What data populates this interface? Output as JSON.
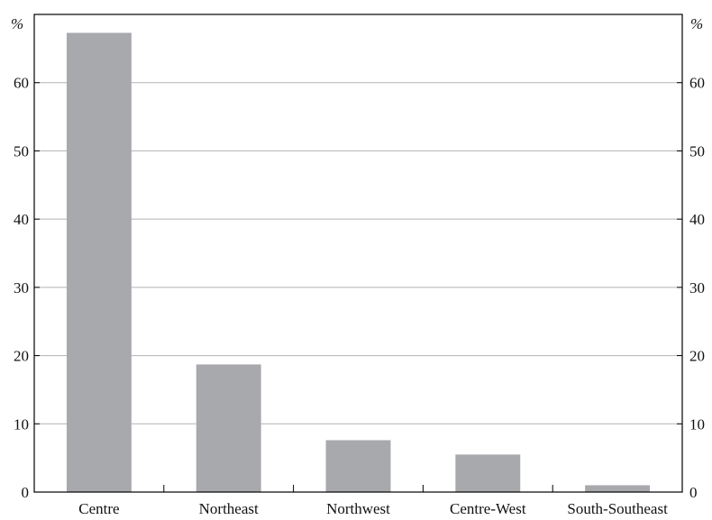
{
  "chart_data": {
    "type": "bar",
    "categories": [
      "Centre",
      "Northeast",
      "Northwest",
      "Centre-West",
      "South-Southeast"
    ],
    "values": [
      67.3,
      18.7,
      7.6,
      5.5,
      1.0
    ],
    "title": "",
    "xlabel": "",
    "ylabel": "%",
    "ylabel_right": "%",
    "ylim": [
      0,
      70
    ],
    "yticks": [
      0,
      10,
      20,
      30,
      40,
      50,
      60
    ],
    "grid": true,
    "legend": "none",
    "colors": {
      "bar": "#a7a9ac",
      "grid": "#b3b3b3",
      "axis": "#000000",
      "text": "#111111"
    }
  }
}
